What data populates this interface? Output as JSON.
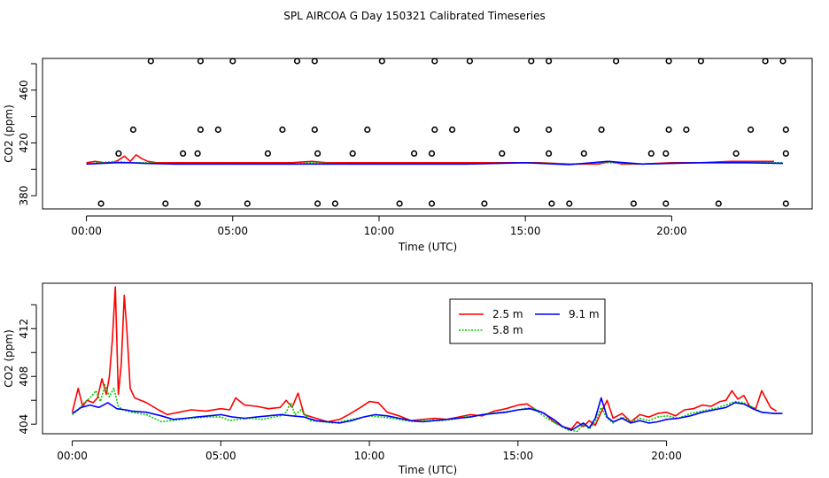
{
  "title": "SPL AIRCOA G  Day 150321  Calibrated Timeseries",
  "colors": {
    "2.5 m": "#ff0000",
    "5.8 m": "#00cc00",
    "9.1 m": "#0000ff",
    "axis": "#000000"
  },
  "chart_data": [
    {
      "type": "scatter",
      "id": "top",
      "xlabel": "Time (UTC)",
      "ylabel": "CO2 (ppm)",
      "xlim": [
        -1.5,
        24.8
      ],
      "ylim": [
        370,
        484
      ],
      "x_ticks": [
        0,
        5,
        10,
        15,
        20
      ],
      "x_tick_labels": [
        "00:00",
        "05:00",
        "10:00",
        "15:00",
        "20:00"
      ],
      "y_ticks": [
        380,
        420,
        460
      ],
      "y_tick_labels": [
        "380",
        "420",
        "460"
      ],
      "minor_y_ticks": [
        400,
        440,
        480
      ],
      "grid": false,
      "flag_levels": [
        374,
        412,
        430,
        482
      ],
      "flag_points": {
        "374": [
          0.5,
          2.7,
          3.8,
          5.5,
          7.9,
          8.5,
          10.7,
          11.8,
          13.6,
          15.9,
          16.5,
          18.7,
          19.8,
          21.6,
          23.9
        ],
        "412": [
          1.1,
          3.3,
          3.8,
          6.2,
          7.9,
          9.1,
          11.2,
          11.8,
          14.2,
          15.8,
          17.0,
          19.3,
          19.8,
          22.2,
          23.9
        ],
        "430": [
          1.6,
          3.9,
          4.5,
          6.7,
          7.8,
          9.6,
          11.9,
          12.5,
          14.7,
          15.8,
          17.6,
          19.9,
          20.5,
          22.7,
          23.9
        ],
        "482": [
          2.2,
          3.9,
          5.0,
          7.2,
          7.8,
          10.1,
          11.9,
          13.1,
          15.2,
          15.8,
          18.1,
          19.9,
          21.0,
          23.2,
          23.8
        ]
      },
      "series": [
        {
          "name": "2.5 m",
          "x": [
            0,
            0.3,
            0.6,
            0.9,
            1.1,
            1.3,
            1.5,
            1.7,
            1.9,
            2.1,
            2.4,
            3.0,
            4.0,
            5.0,
            6.0,
            7.0,
            7.7,
            8.2,
            9.0,
            10.0,
            11.0,
            12.0,
            13.0,
            14.0,
            15.0,
            15.5,
            16.5,
            17.0,
            17.5,
            17.9,
            18.3,
            19.0,
            20.0,
            21.0,
            22.0,
            22.5,
            23.0,
            23.5
          ],
          "values": [
            405,
            406,
            405,
            405,
            407,
            410,
            406,
            411,
            408,
            406,
            405,
            405,
            405,
            405,
            405,
            405,
            406,
            405,
            405,
            405,
            405,
            405,
            405,
            405,
            405,
            405,
            404,
            404,
            404,
            406,
            404,
            404,
            405,
            405,
            406,
            406,
            406,
            406
          ]
        },
        {
          "name": "5.8 m",
          "x": [
            0,
            0.5,
            1.0,
            1.5,
            2.0,
            3.0,
            5.0,
            7.2,
            7.6,
            9.0,
            11.0,
            13.0,
            15.0,
            16.5,
            17.8,
            19.0,
            21.0,
            22.5,
            23.8
          ],
          "values": [
            404,
            405,
            406,
            405,
            405,
            404,
            404,
            404,
            405,
            404,
            404,
            404,
            405,
            404,
            405,
            404,
            405,
            405,
            405
          ]
        },
        {
          "name": "9.1 m",
          "x": [
            0,
            0.5,
            1.0,
            1.5,
            2.0,
            3.0,
            5.0,
            7.0,
            9.0,
            11.0,
            13.0,
            15.0,
            16.5,
            17.8,
            19.0,
            21.0,
            22.5,
            23.8
          ],
          "values": [
            404,
            404.5,
            405,
            405,
            404.5,
            404,
            404,
            404,
            404,
            404,
            404,
            405,
            403.5,
            406,
            404,
            405,
            405,
            404.5
          ]
        }
      ]
    },
    {
      "type": "line",
      "id": "bottom",
      "xlabel": "Time (UTC)",
      "ylabel": "CO2 (ppm)",
      "xlim": [
        -1.0,
        24.9
      ],
      "ylim": [
        403.2,
        415.8
      ],
      "x_ticks": [
        0,
        5,
        10,
        15,
        20
      ],
      "x_tick_labels": [
        "00:00",
        "05:00",
        "10:00",
        "15:00",
        "20:00"
      ],
      "y_ticks": [
        404,
        408,
        412
      ],
      "y_tick_labels": [
        "404",
        "408",
        "412"
      ],
      "minor_y_ticks": [
        406,
        410,
        414
      ],
      "grid": false,
      "legend": {
        "position": "top-center",
        "entries": [
          "2.5 m",
          "5.8 m",
          "9.1 m"
        ]
      },
      "series": [
        {
          "name": "2.5 m",
          "x": [
            0.0,
            0.2,
            0.35,
            0.5,
            0.7,
            0.85,
            1.0,
            1.15,
            1.25,
            1.35,
            1.45,
            1.55,
            1.65,
            1.75,
            1.85,
            1.95,
            2.1,
            2.5,
            2.9,
            3.2,
            3.6,
            4.0,
            4.5,
            5.0,
            5.3,
            5.5,
            5.8,
            6.2,
            6.6,
            7.0,
            7.2,
            7.4,
            7.6,
            7.8,
            8.2,
            8.6,
            9.0,
            9.3,
            9.7,
            10.0,
            10.3,
            10.6,
            11.0,
            11.4,
            11.8,
            12.2,
            12.6,
            13.0,
            13.4,
            13.8,
            14.2,
            14.6,
            15.0,
            15.3,
            15.6,
            15.9,
            16.2,
            16.5,
            16.8,
            17.0,
            17.2,
            17.4,
            17.6,
            17.8,
            18.0,
            18.2,
            18.5,
            18.8,
            19.1,
            19.4,
            19.7,
            20.0,
            20.3,
            20.6,
            20.9,
            21.2,
            21.5,
            21.8,
            22.0,
            22.2,
            22.4,
            22.6,
            22.8,
            23.0,
            23.2,
            23.5,
            23.7
          ],
          "values": [
            405.0,
            407.0,
            405.5,
            406.0,
            405.8,
            406.2,
            407.8,
            406.5,
            408.0,
            411.0,
            415.5,
            406.5,
            409.0,
            414.8,
            411.5,
            407.0,
            406.2,
            405.8,
            405.2,
            404.8,
            405.0,
            405.2,
            405.1,
            405.3,
            405.2,
            406.2,
            405.6,
            405.5,
            405.3,
            405.4,
            406.0,
            405.4,
            406.6,
            404.8,
            404.5,
            404.2,
            404.4,
            404.8,
            405.4,
            405.9,
            405.8,
            405.0,
            404.7,
            404.3,
            404.4,
            404.5,
            404.4,
            404.6,
            404.8,
            404.7,
            405.1,
            405.3,
            405.6,
            405.7,
            405.2,
            404.9,
            404.2,
            403.8,
            403.6,
            404.2,
            403.8,
            404.3,
            403.9,
            405.0,
            406.0,
            404.5,
            404.9,
            404.2,
            404.8,
            404.6,
            404.9,
            405.0,
            404.7,
            405.2,
            405.3,
            405.6,
            405.5,
            405.9,
            406.0,
            406.8,
            406.1,
            406.4,
            405.5,
            405.3,
            406.8,
            405.4,
            405.1
          ]
        },
        {
          "name": "5.8 m",
          "x": [
            0.0,
            0.2,
            0.4,
            0.6,
            0.8,
            0.95,
            1.1,
            1.25,
            1.4,
            1.55,
            1.7,
            1.85,
            2.0,
            2.5,
            3.0,
            3.3,
            3.7,
            4.0,
            4.5,
            5.0,
            5.3,
            5.6,
            6.0,
            6.4,
            6.8,
            7.0,
            7.2,
            7.35,
            7.5,
            7.7,
            8.0,
            8.4,
            8.8,
            9.2,
            9.6,
            10.0,
            10.4,
            10.8,
            11.2,
            11.6,
            12.0,
            12.4,
            12.8,
            13.2,
            13.6,
            14.0,
            14.4,
            14.8,
            15.2,
            15.5,
            15.8,
            16.1,
            16.4,
            16.7,
            17.0,
            17.2,
            17.4,
            17.6,
            17.8,
            18.0,
            18.2,
            18.5,
            18.8,
            19.1,
            19.4,
            19.7,
            20.0,
            20.4,
            20.8,
            21.2,
            21.6,
            22.0,
            22.3,
            22.6,
            22.9,
            23.2,
            23.6,
            23.9
          ],
          "values": [
            404.8,
            405.2,
            405.8,
            406.2,
            406.8,
            405.9,
            407.3,
            406.3,
            407.0,
            405.5,
            405.2,
            405.1,
            405.0,
            404.8,
            404.2,
            404.3,
            404.4,
            404.5,
            404.6,
            404.6,
            404.3,
            404.4,
            404.5,
            404.4,
            404.6,
            404.7,
            405.0,
            405.8,
            404.8,
            405.2,
            404.3,
            404.2,
            404.1,
            404.3,
            404.5,
            404.7,
            404.6,
            404.5,
            404.3,
            404.2,
            404.4,
            404.3,
            404.4,
            404.6,
            404.7,
            404.9,
            405.0,
            405.1,
            405.3,
            405.4,
            404.8,
            404.3,
            403.9,
            403.5,
            403.4,
            404.0,
            403.6,
            404.2,
            405.4,
            404.5,
            404.1,
            404.6,
            404.2,
            404.5,
            404.3,
            404.6,
            404.7,
            404.5,
            404.9,
            405.1,
            405.3,
            405.6,
            405.9,
            405.8,
            405.4,
            405.0,
            404.9,
            404.9
          ]
        },
        {
          "name": "9.1 m",
          "x": [
            0.0,
            0.3,
            0.6,
            0.9,
            1.2,
            1.5,
            1.8,
            2.0,
            2.5,
            3.0,
            3.4,
            3.8,
            4.2,
            4.6,
            5.0,
            5.4,
            5.8,
            6.2,
            6.6,
            7.0,
            7.4,
            7.8,
            8.2,
            8.6,
            9.0,
            9.4,
            9.8,
            10.2,
            10.6,
            11.0,
            11.4,
            11.8,
            12.2,
            12.6,
            13.0,
            13.4,
            13.8,
            14.2,
            14.6,
            15.0,
            15.4,
            15.8,
            16.2,
            16.5,
            16.8,
            17.0,
            17.2,
            17.4,
            17.6,
            17.8,
            18.0,
            18.2,
            18.5,
            18.8,
            19.1,
            19.4,
            19.7,
            20.0,
            20.4,
            20.8,
            21.2,
            21.6,
            22.0,
            22.3,
            22.6,
            22.9,
            23.2,
            23.6,
            23.9
          ],
          "values": [
            404.9,
            405.4,
            405.6,
            405.4,
            405.8,
            405.3,
            405.2,
            405.1,
            405.0,
            404.7,
            404.4,
            404.5,
            404.6,
            404.7,
            404.8,
            404.6,
            404.5,
            404.6,
            404.7,
            404.8,
            404.7,
            404.6,
            404.3,
            404.2,
            404.1,
            404.3,
            404.6,
            404.8,
            404.7,
            404.5,
            404.3,
            404.2,
            404.3,
            404.4,
            404.5,
            404.6,
            404.8,
            404.9,
            405.0,
            405.2,
            405.3,
            405.0,
            404.4,
            403.8,
            403.5,
            403.8,
            404.1,
            403.7,
            404.5,
            406.2,
            404.6,
            404.2,
            404.5,
            404.1,
            404.3,
            404.1,
            404.2,
            404.4,
            404.5,
            404.7,
            405.0,
            405.2,
            405.4,
            405.8,
            405.7,
            405.3,
            405.0,
            404.9,
            404.9
          ]
        }
      ]
    }
  ]
}
